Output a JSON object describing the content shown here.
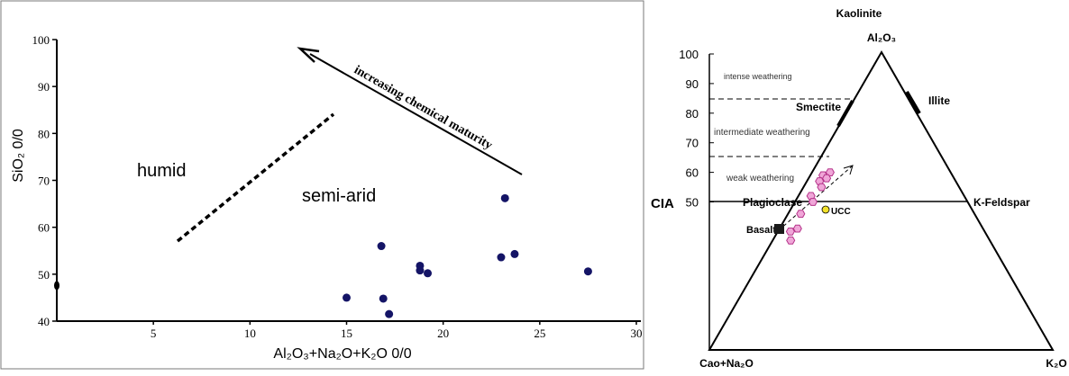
{
  "chart_data": [
    {
      "type": "scatter",
      "xlabel": "Al₂O₃+Na₂O+K₂O 0/0",
      "ylabel": "SiO₂ 0/0",
      "xlim": [
        0,
        30
      ],
      "ylim": [
        40,
        100
      ],
      "x_ticks": [
        "5",
        "10",
        "15",
        "20",
        "25",
        "30"
      ],
      "y_ticks": [
        "40",
        "50",
        "60",
        "70",
        "80",
        "90",
        "100"
      ],
      "annotations": {
        "humid": "humid",
        "semi_arid": "semi-arid",
        "arrow_label": "increasing chemical maturity"
      },
      "points": [
        {
          "x": 15.0,
          "y": 45.0
        },
        {
          "x": 16.8,
          "y": 56.0
        },
        {
          "x": 16.9,
          "y": 44.8
        },
        {
          "x": 17.2,
          "y": 41.5
        },
        {
          "x": 18.8,
          "y": 51.8
        },
        {
          "x": 18.8,
          "y": 50.8
        },
        {
          "x": 19.2,
          "y": 50.2
        },
        {
          "x": 23.0,
          "y": 53.6
        },
        {
          "x": 23.2,
          "y": 66.2
        },
        {
          "x": 23.7,
          "y": 54.3
        },
        {
          "x": 27.5,
          "y": 50.6
        },
        {
          "x": 0.0,
          "y": 47.6
        }
      ],
      "colors": {
        "point": "#141466",
        "axis": "#000000",
        "frame": "#7a7a7a"
      }
    },
    {
      "type": "ternary",
      "apices": {
        "top": "Al₂O₃",
        "top_name": "Kaolinite",
        "left": "Cao+Na₂O",
        "right": "K₂O"
      },
      "axis_label": "CIA",
      "cia_ticks": [
        "50",
        "60",
        "70",
        "80",
        "90",
        "100"
      ],
      "zones": {
        "intense": "intense weathering",
        "intermediate": "intermediate weathering",
        "weak": "weak weathering"
      },
      "minerals": {
        "smectite": "Smectite",
        "illite": "Illite",
        "plagioclase": "Plagioclase",
        "k_feldspar": "K-Feldspar",
        "basalt": "Basalt",
        "ucc": "UCC"
      },
      "samples_cia": [
        60,
        59,
        58,
        57,
        55,
        52,
        50,
        46,
        41,
        40,
        37
      ],
      "colors": {
        "sample": "#f0a6d8",
        "sample_edge": "#b5338a",
        "ucc": "#f2e12b",
        "basalt": "#1a1a1a"
      }
    }
  ]
}
